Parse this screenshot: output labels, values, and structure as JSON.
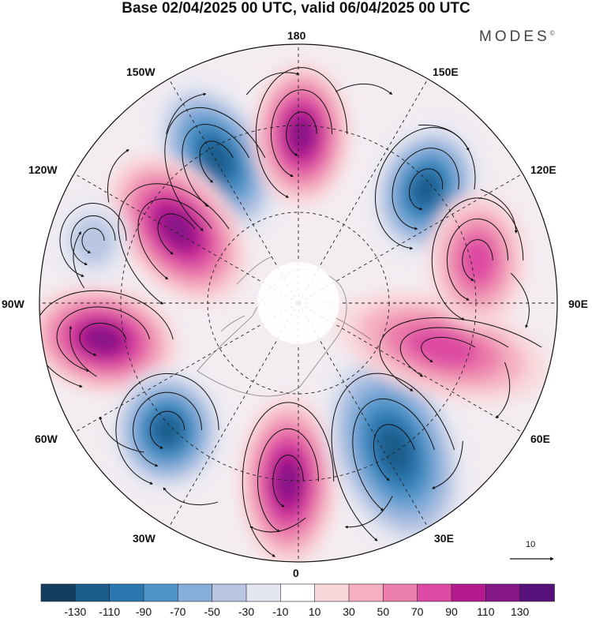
{
  "title": "Base 02/04/2025 00 UTC, valid 06/04/2025 00 UTC",
  "brand": {
    "name": "MODES",
    "mark": "©"
  },
  "longitude_labels": {
    "top": "180",
    "bottom": "0",
    "left": "90W",
    "right": "90E",
    "upper_left_1": "150W",
    "upper_left_2": "120W",
    "upper_right_1": "150E",
    "upper_right_2": "120E",
    "lower_left_1": "60W",
    "lower_left_2": "30W",
    "lower_right_1": "60E",
    "lower_right_2": "30E"
  },
  "reference_vector": {
    "label": "10"
  },
  "colorbar": {
    "labels": [
      "-130",
      "-110",
      "-90",
      "-70",
      "-50",
      "-30",
      "-10",
      "10",
      "30",
      "50",
      "70",
      "90",
      "110",
      "130"
    ],
    "colors": [
      "#153d5d",
      "#1c5c8a",
      "#2a77b1",
      "#4f94c8",
      "#88aedb",
      "#b8c6e3",
      "#e4e6f1",
      "#ffffff",
      "#f9d8dc",
      "#f4afc0",
      "#ec7eab",
      "#dd4aa3",
      "#b7198e",
      "#851688",
      "#56107a"
    ]
  },
  "anomaly_centers": [
    {
      "name": "low-n-pacific",
      "sign": "negative",
      "intensity": "strong"
    },
    {
      "name": "high-n-pacific",
      "sign": "positive",
      "intensity": "strong"
    },
    {
      "name": "low-e-siberia",
      "sign": "negative",
      "intensity": "strong"
    },
    {
      "name": "high-canada",
      "sign": "positive",
      "intensity": "strong"
    },
    {
      "name": "low-ne-pacific",
      "sign": "negative",
      "intensity": "weak"
    },
    {
      "name": "high-n-america",
      "sign": "positive",
      "intensity": "strong"
    },
    {
      "name": "low-w-atlantic",
      "sign": "negative",
      "intensity": "strong"
    },
    {
      "name": "high-n-atlantic",
      "sign": "positive",
      "intensity": "strong"
    },
    {
      "name": "low-europe",
      "sign": "negative",
      "intensity": "strong"
    },
    {
      "name": "high-central-asia",
      "sign": "positive",
      "intensity": "moderate"
    },
    {
      "name": "high-siberia",
      "sign": "positive",
      "intensity": "moderate"
    }
  ]
}
